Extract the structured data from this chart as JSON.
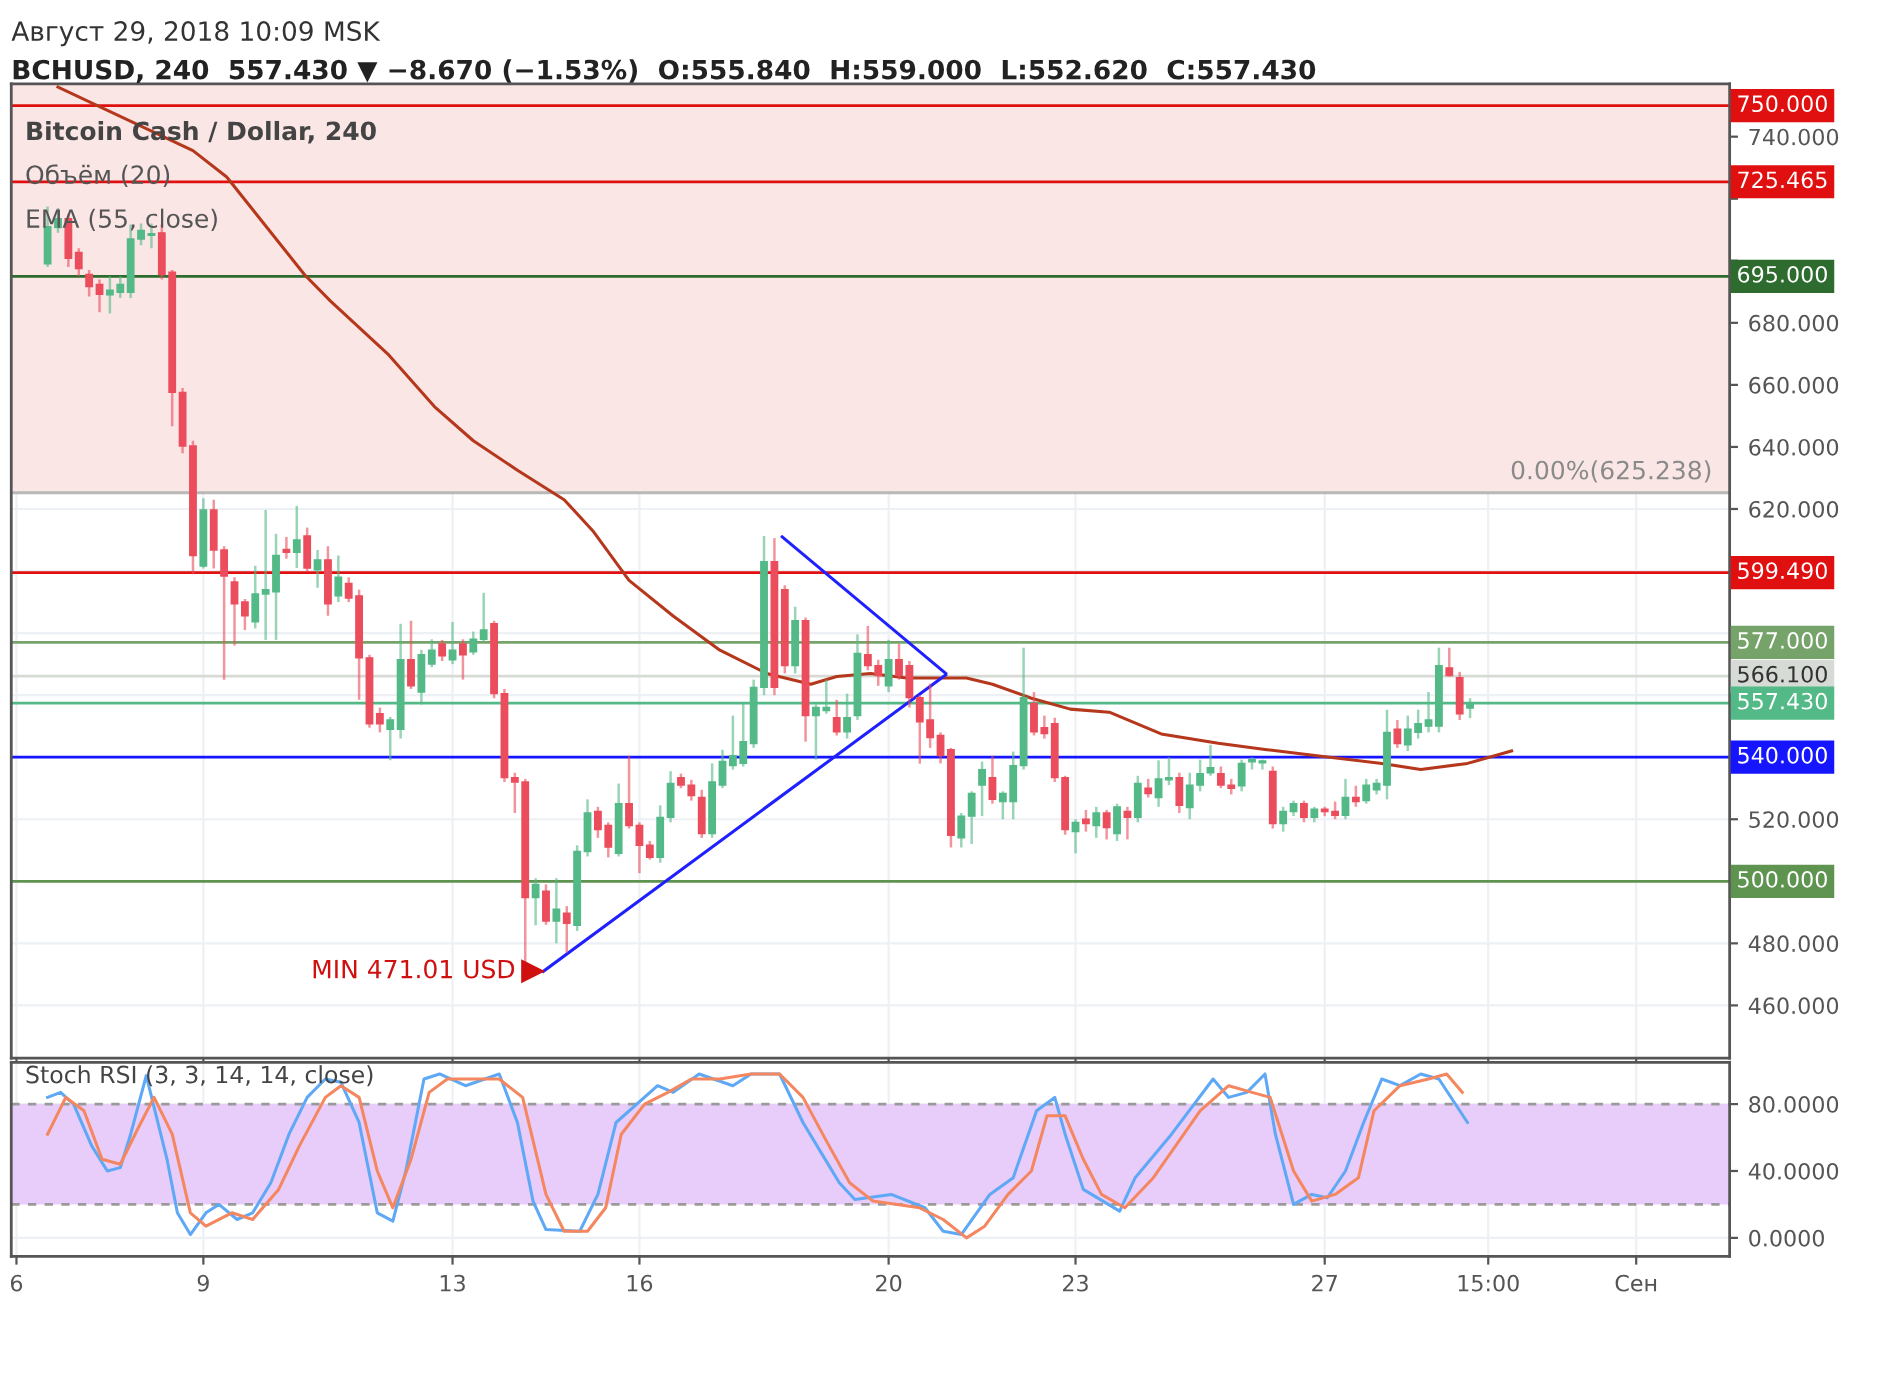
{
  "chart_data": [
    {
      "type": "candlestick",
      "subtitle": "Август 29, 2018 10:09 MSK",
      "title": "BCHUSD, 240  557.430 ▼ −8.670 (−1.53%)  O:555.840  H:559.000  L:552.620  C:557.430",
      "x": [
        "2018-08-06T12:00",
        "2018-08-06T16:00",
        "2018-08-06T20:00",
        "2018-08-07T00:00",
        "2018-08-07T04:00",
        "2018-08-07T08:00",
        "2018-08-07T12:00",
        "2018-08-07T16:00",
        "2018-08-07T20:00",
        "2018-08-08T00:00",
        "2018-08-08T04:00",
        "2018-08-08T08:00",
        "2018-08-08T12:00",
        "2018-08-08T16:00",
        "2018-08-08T20:00",
        "2018-08-09T00:00",
        "2018-08-09T04:00",
        "2018-08-09T08:00",
        "2018-08-09T12:00",
        "2018-08-09T16:00",
        "2018-08-09T20:00",
        "2018-08-10T00:00",
        "2018-08-10T04:00",
        "2018-08-10T08:00",
        "2018-08-10T12:00",
        "2018-08-10T16:00",
        "2018-08-10T20:00",
        "2018-08-11T00:00",
        "2018-08-11T04:00",
        "2018-08-11T08:00",
        "2018-08-11T12:00",
        "2018-08-11T16:00",
        "2018-08-11T20:00",
        "2018-08-12T00:00",
        "2018-08-12T04:00",
        "2018-08-12T08:00",
        "2018-08-12T12:00",
        "2018-08-12T16:00",
        "2018-08-12T20:00",
        "2018-08-13T00:00",
        "2018-08-13T04:00",
        "2018-08-13T08:00",
        "2018-08-13T12:00",
        "2018-08-13T16:00",
        "2018-08-13T20:00",
        "2018-08-14T00:00",
        "2018-08-14T04:00",
        "2018-08-14T08:00",
        "2018-08-14T12:00",
        "2018-08-14T16:00",
        "2018-08-14T20:00",
        "2018-08-15T00:00",
        "2018-08-15T04:00",
        "2018-08-15T08:00",
        "2018-08-15T12:00",
        "2018-08-15T16:00",
        "2018-08-15T20:00",
        "2018-08-16T00:00",
        "2018-08-16T04:00",
        "2018-08-16T08:00",
        "2018-08-16T12:00",
        "2018-08-16T16:00",
        "2018-08-16T20:00",
        "2018-08-17T00:00",
        "2018-08-17T04:00",
        "2018-08-17T08:00",
        "2018-08-17T12:00",
        "2018-08-17T16:00",
        "2018-08-17T20:00",
        "2018-08-18T00:00",
        "2018-08-18T04:00",
        "2018-08-18T08:00",
        "2018-08-18T12:00",
        "2018-08-18T16:00",
        "2018-08-18T20:00",
        "2018-08-19T00:00",
        "2018-08-19T04:00",
        "2018-08-19T08:00",
        "2018-08-19T12:00",
        "2018-08-19T16:00",
        "2018-08-19T20:00",
        "2018-08-20T00:00",
        "2018-08-20T04:00",
        "2018-08-20T08:00",
        "2018-08-20T12:00",
        "2018-08-20T16:00",
        "2018-08-20T20:00",
        "2018-08-21T00:00",
        "2018-08-21T04:00",
        "2018-08-21T08:00",
        "2018-08-21T12:00",
        "2018-08-21T16:00",
        "2018-08-21T20:00",
        "2018-08-22T00:00",
        "2018-08-22T04:00",
        "2018-08-22T08:00",
        "2018-08-22T12:00",
        "2018-08-22T16:00",
        "2018-08-22T20:00",
        "2018-08-23T00:00",
        "2018-08-23T04:00",
        "2018-08-23T08:00",
        "2018-08-23T12:00",
        "2018-08-23T16:00",
        "2018-08-23T20:00",
        "2018-08-24T00:00",
        "2018-08-24T04:00",
        "2018-08-24T08:00",
        "2018-08-24T12:00",
        "2018-08-24T16:00",
        "2018-08-24T20:00",
        "2018-08-25T00:00",
        "2018-08-25T04:00",
        "2018-08-25T08:00",
        "2018-08-25T12:00",
        "2018-08-25T16:00",
        "2018-08-25T20:00",
        "2018-08-26T00:00",
        "2018-08-26T04:00",
        "2018-08-26T08:00",
        "2018-08-26T12:00",
        "2018-08-26T16:00",
        "2018-08-26T20:00",
        "2018-08-27T00:00",
        "2018-08-27T04:00",
        "2018-08-27T08:00",
        "2018-08-27T12:00",
        "2018-08-27T16:00",
        "2018-08-27T20:00",
        "2018-08-28T00:00",
        "2018-08-28T04:00",
        "2018-08-28T08:00",
        "2018-08-28T12:00",
        "2018-08-28T16:00",
        "2018-08-28T20:00",
        "2018-08-29T00:00",
        "2018-08-29T04:00",
        "2018-08-29T08:00"
      ],
      "ohlc": [
        [
          699,
          717.5,
          698,
          711
        ],
        [
          710.7,
          717,
          709,
          713.6
        ],
        [
          713.6,
          715,
          698,
          700.8
        ],
        [
          702.7,
          704,
          695,
          697.5
        ],
        [
          695.6,
          697,
          688.5,
          691.7
        ],
        [
          692.4,
          694,
          683.4,
          689.2
        ],
        [
          689,
          695,
          683,
          690.5
        ],
        [
          689.8,
          695,
          688,
          692.4
        ],
        [
          689.8,
          711.7,
          688,
          707
        ],
        [
          707,
          712,
          705,
          709.8
        ],
        [
          708.2,
          712,
          704,
          708.7
        ],
        [
          709,
          711.7,
          694,
          695.6
        ],
        [
          696.3,
          697,
          646.7,
          657.6
        ],
        [
          657.6,
          659,
          638,
          640.3
        ],
        [
          640.3,
          642,
          599,
          605
        ],
        [
          601.6,
          623.5,
          600.8,
          619.7
        ],
        [
          619.7,
          623,
          600.8,
          606.8
        ],
        [
          606.8,
          608,
          565,
          598.4
        ],
        [
          596.5,
          598,
          576,
          589.4
        ],
        [
          590,
          591,
          581,
          585.6
        ],
        [
          583.6,
          601.7,
          581.5,
          592.6
        ],
        [
          592.6,
          619.7,
          577.8,
          594
        ],
        [
          593.3,
          612,
          577.8,
          605
        ],
        [
          607,
          611,
          604,
          606
        ],
        [
          606,
          621,
          601,
          610
        ],
        [
          611.3,
          614,
          600,
          601
        ],
        [
          600.4,
          606.8,
          594.6,
          603.6
        ],
        [
          603.6,
          608,
          585.6,
          589.4
        ],
        [
          592,
          605,
          590,
          598
        ],
        [
          596,
          598,
          590,
          591.3
        ],
        [
          592,
          594,
          558.5,
          572
        ],
        [
          572,
          573,
          549.5,
          550.8
        ],
        [
          554,
          556,
          548,
          550.8
        ],
        [
          549,
          553,
          539,
          552
        ],
        [
          549,
          583,
          546,
          571.4
        ],
        [
          571.4,
          584,
          562,
          563
        ],
        [
          561,
          574.6,
          557,
          573
        ],
        [
          570,
          578,
          569,
          574.5
        ],
        [
          576.5,
          577.8,
          571,
          572.7
        ],
        [
          571.4,
          583.6,
          570,
          574.5
        ],
        [
          576.5,
          578,
          565,
          573
        ],
        [
          574,
          580.5,
          573,
          578
        ],
        [
          578,
          593,
          577,
          581
        ],
        [
          583,
          584,
          559,
          560.5
        ],
        [
          560.5,
          562,
          532,
          533.4
        ],
        [
          533.4,
          535,
          522,
          532
        ],
        [
          532,
          533,
          471.01,
          494.8
        ],
        [
          494.8,
          501,
          485.8,
          499
        ],
        [
          496.8,
          499,
          486,
          487.2
        ],
        [
          487.2,
          501,
          480,
          491
        ],
        [
          489.7,
          492,
          477,
          486.5
        ],
        [
          485.8,
          511.6,
          484,
          509.6
        ],
        [
          509.6,
          526.4,
          508,
          522
        ],
        [
          522.5,
          524,
          514,
          516.7
        ],
        [
          518,
          519,
          507.7,
          511
        ],
        [
          509,
          531.5,
          508,
          525
        ],
        [
          525,
          540.5,
          517,
          518
        ],
        [
          518,
          519,
          502.6,
          511.6
        ],
        [
          511.6,
          513,
          507,
          507.7
        ],
        [
          507.7,
          524.5,
          506,
          520.6
        ],
        [
          520.6,
          535.5,
          519,
          531.5
        ],
        [
          533.4,
          534.7,
          530,
          531
        ],
        [
          531,
          532.7,
          526,
          527.6
        ],
        [
          527,
          529.5,
          514,
          515.4
        ],
        [
          515.4,
          538,
          514,
          532
        ],
        [
          531,
          542.4,
          530,
          538.6
        ],
        [
          537.3,
          553.4,
          536,
          540.5
        ],
        [
          538,
          557.3,
          537,
          545
        ],
        [
          544.4,
          565,
          543,
          562.5
        ],
        [
          562.5,
          611.3,
          560,
          603
        ],
        [
          603,
          610.6,
          560,
          562.5
        ],
        [
          594,
          595.4,
          567,
          569.5
        ],
        [
          569.5,
          588.5,
          567,
          584
        ],
        [
          584,
          585,
          545,
          553.4
        ],
        [
          553.4,
          557,
          539.2,
          556
        ],
        [
          555,
          565,
          554,
          556
        ],
        [
          552.7,
          558.5,
          547,
          548.2
        ],
        [
          548.2,
          560.5,
          546,
          552.7
        ],
        [
          553.4,
          579.6,
          552,
          573.4
        ],
        [
          573,
          582.3,
          568,
          569.5
        ],
        [
          569.5,
          571.4,
          563,
          566.3
        ],
        [
          563,
          577.8,
          561,
          571.4
        ],
        [
          571.4,
          576.5,
          565,
          566.3
        ],
        [
          569.5,
          571,
          556,
          559.2
        ],
        [
          559.2,
          560,
          537.9,
          551.4
        ],
        [
          552,
          563.7,
          543,
          546.3
        ],
        [
          547,
          548,
          538,
          540.5
        ],
        [
          542.4,
          543,
          510.9,
          514.8
        ],
        [
          514,
          522,
          510.9,
          521
        ],
        [
          521,
          529,
          512,
          528.3
        ],
        [
          531,
          538.6,
          521,
          536
        ],
        [
          533.4,
          540.5,
          525,
          526.4
        ],
        [
          525.7,
          529,
          520,
          528.3
        ],
        [
          525.7,
          541.8,
          520,
          537.3
        ],
        [
          537.3,
          575.3,
          536,
          559.2
        ],
        [
          557.3,
          561,
          547,
          548.2
        ],
        [
          549.5,
          553.4,
          546,
          547.6
        ],
        [
          550.8,
          552.7,
          532,
          533.4
        ],
        [
          533.4,
          534,
          515,
          516.7
        ],
        [
          516,
          520,
          509,
          519
        ],
        [
          520,
          523,
          516,
          518.6
        ],
        [
          518,
          524,
          514,
          522
        ],
        [
          522,
          523,
          513.5,
          517.3
        ],
        [
          515.4,
          525,
          513,
          524
        ],
        [
          522.5,
          524,
          513.5,
          520.6
        ],
        [
          520.6,
          534,
          519,
          531.5
        ],
        [
          530,
          533,
          527,
          528.3
        ],
        [
          527,
          539,
          524,
          533
        ],
        [
          532.7,
          540,
          531,
          533.4
        ],
        [
          533.4,
          535,
          522,
          524.5
        ],
        [
          523.8,
          535,
          520,
          531
        ],
        [
          531,
          539.2,
          529,
          534.7
        ],
        [
          535,
          544,
          534,
          536.6
        ],
        [
          534.7,
          537,
          530,
          531
        ],
        [
          531,
          533,
          528,
          530
        ],
        [
          530.8,
          539.2,
          529,
          538
        ],
        [
          538.5,
          540,
          536,
          539.2
        ],
        [
          538.2,
          539.2,
          536,
          538.8
        ],
        [
          535.4,
          537,
          517,
          518.6
        ],
        [
          518.6,
          524,
          516,
          522.5
        ],
        [
          522.5,
          526,
          521,
          525
        ],
        [
          525,
          526,
          519,
          520.6
        ],
        [
          520.6,
          524,
          519,
          523.2
        ],
        [
          523.2,
          524,
          521,
          522.5
        ],
        [
          522.5,
          525.7,
          520,
          521.3
        ],
        [
          521.3,
          533,
          520,
          527
        ],
        [
          527,
          530.8,
          524,
          525.7
        ],
        [
          526,
          533,
          525,
          531
        ],
        [
          529.5,
          533,
          528,
          531.5
        ],
        [
          531,
          555.3,
          526.4,
          548
        ],
        [
          549,
          552,
          543,
          544.4
        ],
        [
          544,
          553.4,
          542,
          549
        ],
        [
          548,
          555.3,
          546,
          550.8
        ],
        [
          550,
          561,
          548,
          552
        ],
        [
          550,
          575.3,
          548,
          569.5
        ],
        [
          568.8,
          575.3,
          566,
          566.3
        ],
        [
          565.6,
          567.5,
          552,
          554
        ],
        [
          555.84,
          559,
          552.62,
          557.43
        ]
      ],
      "series": [
        {
          "type": "line",
          "color": "#b5371c",
          "x": [
            "2018-08-06T16:00",
            "2018-08-08T20:00",
            "2018-08-09T09:00",
            "2018-08-10T15:00",
            "2018-08-11T01:00",
            "2018-08-11T23:00",
            "2018-08-12T17:00",
            "2018-08-13T08:00",
            "2018-08-14T01:00",
            "2018-08-14T19:00",
            "2018-08-15T06:00",
            "2018-08-15T20:00",
            "2018-08-16T13:00",
            "2018-08-17T07:00",
            "2018-08-18T01:00",
            "2018-08-18T18:00",
            "2018-08-19T04:00",
            "2018-08-19T17:00",
            "2018-08-20T07:00",
            "2018-08-21T06:00",
            "2018-08-21T16:00",
            "2018-08-22T07:00",
            "2018-08-22T22:00",
            "2018-08-23T13:00",
            "2018-08-24T09:00",
            "2018-08-25T07:00",
            "2018-08-26T01:00",
            "2018-08-26T21:00",
            "2018-08-27T22:00",
            "2018-08-28T13:00",
            "2018-08-29T07:00",
            "2018-08-30T00:00"
          ],
          "values": [
            756,
            735.5,
            727,
            695.5,
            687,
            670,
            653,
            642,
            632.5,
            623,
            613,
            597,
            585.5,
            574.5,
            567,
            563.5,
            566,
            567,
            565.5,
            565.5,
            563.5,
            559,
            555.5,
            554.5,
            547.5,
            544.5,
            542.5,
            540.5,
            538,
            536,
            538,
            542
          ]
        },
        {
          "type": "line",
          "color": "#2020ff",
          "x": [
            "2018-08-18T07:00",
            "2018-08-20T22:00"
          ],
          "values": [
            611,
            567
          ]
        },
        {
          "type": "line",
          "color": "#2020ff",
          "x": [
            "2018-08-14T11:00",
            "2018-08-20T22:00"
          ],
          "values": [
            471.01,
            566.5
          ]
        }
      ],
      "xlim": [
        "2018-08-05T22:00",
        "2018-09-02T12:00"
      ],
      "xticks": [
        {
          "value": "2018-08-06",
          "label": null
        },
        {
          "value": "2018-08-09",
          "label": null
        },
        {
          "value": "2018-08-13",
          "label": null
        },
        {
          "value": "2018-08-16",
          "label": null
        },
        {
          "value": "2018-08-20",
          "label": null
        },
        {
          "value": "2018-08-23",
          "label": null
        },
        {
          "value": "2018-08-27",
          "label": null
        },
        {
          "value": "2018-08-29T15:00",
          "label": null
        },
        {
          "value": "2018-09-01",
          "label": null
        }
      ],
      "ylim": [
        443,
        757
      ],
      "yticks": [
        {
          "value": 460,
          "label": "460.000"
        },
        {
          "value": 480,
          "label": "480.000"
        },
        {
          "value": 500,
          "label": null
        },
        {
          "value": 520,
          "label": "520.000"
        },
        {
          "value": 540,
          "label": null
        },
        {
          "value": 560,
          "label": null
        },
        {
          "value": 580,
          "label": null
        },
        {
          "value": 600,
          "label": null
        },
        {
          "value": 620,
          "label": "620.000"
        },
        {
          "value": 640,
          "label": "640.000"
        },
        {
          "value": 660,
          "label": "660.000"
        },
        {
          "value": 680,
          "label": "680.000"
        },
        {
          "value": 700,
          "label": null
        },
        {
          "value": 720,
          "label": null
        },
        {
          "value": 740,
          "label": "740.000"
        }
      ],
      "bands": [
        {
          "axis": "y",
          "from": 625.238,
          "to": 757,
          "color": "#fbe6e6"
        }
      ],
      "ref_lines": [
        {
          "axis": "y",
          "value": 750,
          "label": "750.000",
          "color": "#e01010"
        },
        {
          "axis": "y",
          "value": 725.465,
          "label": "725.465",
          "color": "#e01010"
        },
        {
          "axis": "y",
          "value": 695,
          "label": "695.000",
          "color": "#2e6b2e"
        },
        {
          "axis": "y",
          "value": 625.238,
          "label": null,
          "color": "#b8b8b8"
        },
        {
          "axis": "y",
          "value": 599.49,
          "label": "599.490",
          "color": "#e01010"
        },
        {
          "axis": "y",
          "value": 577,
          "label": "577.000",
          "color": "#76a36a"
        },
        {
          "axis": "y",
          "value": 566.1,
          "label": "566.100",
          "color": "#d6dbd6"
        },
        {
          "axis": "y",
          "value": 557.43,
          "label": "557.430",
          "color": "#53b987"
        },
        {
          "axis": "y",
          "value": 540,
          "label": "540.000",
          "color": "#1515ff"
        },
        {
          "axis": "y",
          "value": 500,
          "label": "500.000",
          "color": "#5f9450"
        }
      ],
      "annotations": [
        "Bitcoin Cash / Dollar, 240",
        "Объём (20)",
        "EMA (55, close)",
        {
          "text": "MIN 471.01 USD",
          "x": "2018-08-14T11:00",
          "y": 471.01
        },
        {
          "text": "0.00%(625.238)",
          "x": "2018-08-29T17:00",
          "y": 625.238
        }
      ],
      "grid": true,
      "tick_labels": "y"
    },
    {
      "type": "line",
      "title": "Stoch RSI (3, 3, 14, 14, close)",
      "series": [
        {
          "color": "#5fa8f5",
          "x": [
            "2018-08-06T12:00",
            "2018-08-06T17:00",
            "2018-08-06T22:00",
            "2018-08-07T05:00",
            "2018-08-07T11:00",
            "2018-08-07T16:00",
            "2018-08-07T20:00",
            "2018-08-08T02:00",
            "2018-08-08T10:00",
            "2018-08-08T14:00",
            "2018-08-08T19:00",
            "2018-08-09T01:00",
            "2018-08-09T06:00",
            "2018-08-09T13:00",
            "2018-08-09T19:00",
            "2018-08-10T02:00",
            "2018-08-10T09:00",
            "2018-08-10T16:00",
            "2018-08-10T23:00",
            "2018-08-11T05:00",
            "2018-08-11T12:00",
            "2018-08-11T19:00",
            "2018-08-12T01:00",
            "2018-08-12T06:00",
            "2018-08-12T13:00",
            "2018-08-12T19:00",
            "2018-08-13T05:00",
            "2018-08-13T18:00",
            "2018-08-14T01:00",
            "2018-08-14T07:00",
            "2018-08-14T12:00",
            "2018-08-15T01:00",
            "2018-08-15T08:00",
            "2018-08-15T15:00",
            "2018-08-16T07:00",
            "2018-08-16T13:00",
            "2018-08-16T23:00",
            "2018-08-17T12:00",
            "2018-08-17T19:00",
            "2018-08-18T06:00",
            "2018-08-18T15:00",
            "2018-08-18T22:00",
            "2018-08-19T05:00",
            "2018-08-19T11:00",
            "2018-08-20T01:00",
            "2018-08-20T14:00",
            "2018-08-20T21:00",
            "2018-08-21T04:00",
            "2018-08-21T15:00",
            "2018-08-22T00:00",
            "2018-08-22T09:00",
            "2018-08-22T16:00",
            "2018-08-22T20:00",
            "2018-08-23T03:00",
            "2018-08-23T17:00",
            "2018-08-23T23:00",
            "2018-08-24T13:00",
            "2018-08-25T05:00",
            "2018-08-25T11:00",
            "2018-08-25T18:00",
            "2018-08-26T01:00",
            "2018-08-26T05:00",
            "2018-08-26T12:00",
            "2018-08-26T19:00",
            "2018-08-27T01:00",
            "2018-08-27T08:00",
            "2018-08-27T15:00",
            "2018-08-27T22:00",
            "2018-08-28T05:00",
            "2018-08-28T13:00",
            "2018-08-28T20:00",
            "2018-08-29T07:00"
          ],
          "values": [
            84,
            87,
            80,
            55,
            40,
            42,
            62,
            97,
            47,
            15,
            2,
            15,
            20,
            11,
            15,
            33,
            62,
            84,
            95,
            93,
            69,
            15,
            10,
            40,
            95,
            98,
            91,
            98,
            69,
            22,
            5,
            4,
            26,
            69,
            91,
            87,
            98,
            91,
            98,
            98,
            69,
            51,
            33,
            23,
            26,
            18,
            4,
            2,
            26,
            36,
            76,
            84,
            62,
            29,
            16,
            36,
            62,
            95,
            84,
            87,
            98,
            62,
            20,
            26,
            24,
            40,
            69,
            95,
            91,
            98,
            95,
            69
          ]
        },
        {
          "color": "#f4875f",
          "x": [
            "2018-08-06T12:00",
            "2018-08-06T19:00",
            "2018-08-07T02:00",
            "2018-08-07T09:00",
            "2018-08-07T16:00",
            "2018-08-07T23:00",
            "2018-08-08T05:00",
            "2018-08-08T12:00",
            "2018-08-08T19:00",
            "2018-08-09T01:00",
            "2018-08-09T11:00",
            "2018-08-09T19:00",
            "2018-08-10T05:00",
            "2018-08-10T13:00",
            "2018-08-10T23:00",
            "2018-08-11T05:00",
            "2018-08-11T12:00",
            "2018-08-11T19:00",
            "2018-08-12T01:00",
            "2018-08-12T08:00",
            "2018-08-12T15:00",
            "2018-08-12T22:00",
            "2018-08-13T18:00",
            "2018-08-14T03:00",
            "2018-08-14T12:00",
            "2018-08-14T19:00",
            "2018-08-15T04:00",
            "2018-08-15T11:00",
            "2018-08-15T17:00",
            "2018-08-16T02:00",
            "2018-08-16T11:00",
            "2018-08-16T20:00",
            "2018-08-17T07:00",
            "2018-08-17T19:00",
            "2018-08-18T06:00",
            "2018-08-18T15:00",
            "2018-08-19T00:00",
            "2018-08-19T09:00",
            "2018-08-19T18:00",
            "2018-08-20T12:00",
            "2018-08-20T21:00",
            "2018-08-21T06:00",
            "2018-08-21T13:00",
            "2018-08-21T22:00",
            "2018-08-22T07:00",
            "2018-08-22T13:00",
            "2018-08-22T20:00",
            "2018-08-23T03:00",
            "2018-08-23T10:00",
            "2018-08-23T19:00",
            "2018-08-24T06:00",
            "2018-08-25T00:00",
            "2018-08-25T11:00",
            "2018-08-25T20:00",
            "2018-08-26T03:00",
            "2018-08-26T12:00",
            "2018-08-26T19:00",
            "2018-08-27T04:00",
            "2018-08-27T13:00",
            "2018-08-27T19:00",
            "2018-08-28T05:00",
            "2018-08-28T16:00",
            "2018-08-28T23:00",
            "2018-08-29T05:00"
          ],
          "values": [
            62,
            84,
            76,
            47,
            44,
            66,
            84,
            62,
            15,
            7,
            15,
            11,
            29,
            55,
            84,
            91,
            84,
            40,
            18,
            47,
            87,
            95,
            95,
            84,
            26,
            4,
            4,
            18,
            62,
            80,
            87,
            95,
            95,
            98,
            98,
            84,
            58,
            33,
            22,
            18,
            11,
            0,
            7,
            26,
            40,
            73,
            73,
            47,
            26,
            18,
            36,
            76,
            91,
            87,
            84,
            40,
            22,
            26,
            36,
            76,
            91,
            95,
            98,
            87
          ]
        }
      ],
      "xlim": [
        "2018-08-05T22:00",
        "2018-09-02T12:00"
      ],
      "xticks": [
        {
          "value": "2018-08-06",
          "label": "6"
        },
        {
          "value": "2018-08-09",
          "label": "9"
        },
        {
          "value": "2018-08-13",
          "label": "13"
        },
        {
          "value": "2018-08-16",
          "label": "16"
        },
        {
          "value": "2018-08-20",
          "label": "20"
        },
        {
          "value": "2018-08-23",
          "label": "23"
        },
        {
          "value": "2018-08-27",
          "label": "27"
        },
        {
          "value": "2018-08-29T15:00",
          "label": "15:00"
        },
        {
          "value": "2018-09-01",
          "label": "Сен"
        }
      ],
      "ylim": [
        -11,
        105
      ],
      "yticks": [
        {
          "value": 0,
          "label": "0.0000"
        },
        {
          "value": 40,
          "label": "40.0000"
        },
        {
          "value": 80,
          "label": "80.0000"
        }
      ],
      "bands": [
        {
          "axis": "y",
          "from": 20,
          "to": 80,
          "color": "#e8cdfb"
        }
      ],
      "ref_lines": [
        {
          "axis": "y",
          "value": 20,
          "label": null,
          "color": "#9a9a9a",
          "line_style": "dashed"
        },
        {
          "axis": "y",
          "value": 80,
          "label": null,
          "color": "#9a9a9a",
          "line_style": "dashed"
        }
      ],
      "grid": true
    }
  ]
}
